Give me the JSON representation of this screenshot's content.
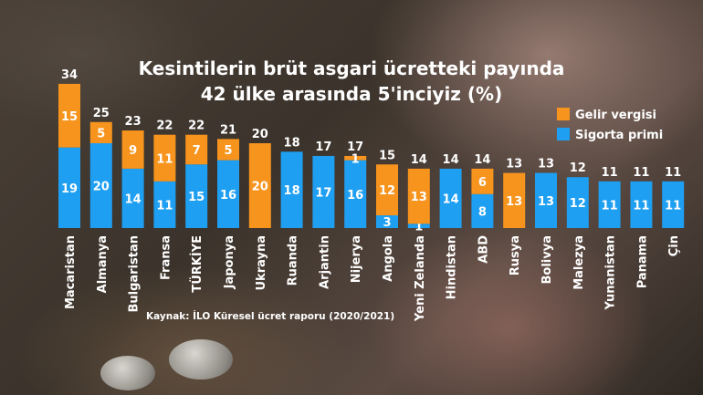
{
  "chart_data": {
    "type": "bar",
    "stacked": true,
    "title_lines": [
      "Kesintilerin brüt asgari ücretteki payında",
      "42 ülke arasında 5'inciyiz (%)"
    ],
    "source": "Kaynak: İLO Küresel ücret raporu (2020/2021)",
    "categories": [
      "Macaristan",
      "Almanya",
      "Bulgaristan",
      "Fransa",
      "TÜRKİYE",
      "Japonya",
      "Ukrayna",
      "Ruanda",
      "Arjantin",
      "Nijerya",
      "Angola",
      "Yeni Zelanda",
      "Hindistan",
      "ABD",
      "Rusya",
      "Bolivya",
      "Malezya",
      "Yunanistan",
      "Panama",
      "Çin"
    ],
    "totals": [
      34,
      25,
      23,
      22,
      22,
      21,
      20,
      18,
      17,
      17,
      15,
      14,
      14,
      14,
      13,
      13,
      12,
      11,
      11,
      11
    ],
    "series": [
      {
        "name": "Sigorta primi",
        "color": "#1e9ff2",
        "values": [
          19,
          20,
          14,
          11,
          15,
          16,
          0,
          18,
          17,
          16,
          3,
          1,
          14,
          8,
          0,
          13,
          12,
          11,
          11,
          11
        ]
      },
      {
        "name": "Gelir vergisi",
        "color": "#f7941d",
        "values": [
          15,
          5,
          9,
          11,
          7,
          5,
          20,
          0,
          0,
          1,
          12,
          13,
          0,
          6,
          13,
          0,
          0,
          0,
          0,
          0
        ]
      }
    ],
    "ylim": [
      0,
      34
    ],
    "highlight_category": "TÜRKİYE",
    "highlight_color": "#ffe81a",
    "legend_position": "top-right"
  }
}
